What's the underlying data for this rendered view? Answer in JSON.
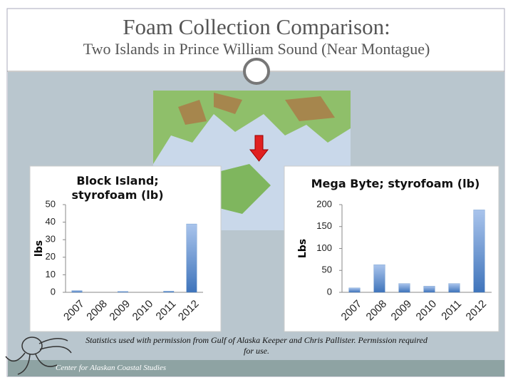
{
  "slide": {
    "title": "Foam Collection Comparison:",
    "subtitle": "Two Islands in Prince William Sound (Near Montague)",
    "caption": "Statistics used with permission from Gulf of Alaska Keeper and Chris Pallister. Permission required for use.",
    "footer": "Center for Alaskan Coastal Studies"
  },
  "chart_data": [
    {
      "type": "bar",
      "title": "Block Island; styrofoam (lb)",
      "y_label": "lbs",
      "categories": [
        "2007",
        "2008",
        "2009",
        "2010",
        "2011",
        "2012"
      ],
      "values": [
        1,
        0,
        0.5,
        0,
        0.7,
        39
      ],
      "color": "#4f81bd",
      "ylim": [
        0,
        50
      ],
      "yticks": [
        0,
        10,
        20,
        30,
        40,
        50
      ],
      "grid": false
    },
    {
      "type": "bar",
      "title": "Mega Byte; styrofoam (lb)",
      "y_label": "Lbs",
      "categories": [
        "2007",
        "2008",
        "2009",
        "2010",
        "2011",
        "2012"
      ],
      "values": [
        10,
        63,
        20,
        14,
        20,
        188
      ],
      "color": "#4f81bd",
      "ylim": [
        0,
        200
      ],
      "yticks": [
        0,
        50,
        100,
        150,
        200
      ],
      "grid": false
    }
  ]
}
